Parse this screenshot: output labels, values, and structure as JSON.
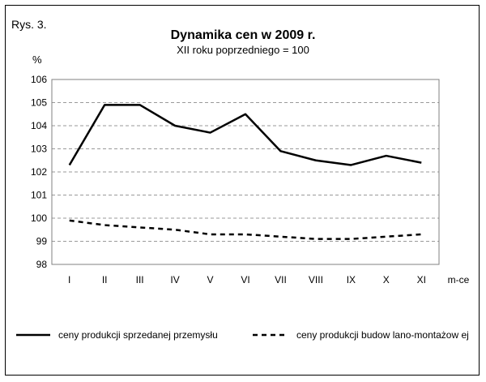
{
  "figure_label": "Rys. 3.",
  "chart_data": {
    "type": "line",
    "title": "Dynamika cen w 2009 r.",
    "subtitle": "XII roku poprzedniego = 100",
    "ylabel": "%",
    "xlabel": "m-ce",
    "ylim": [
      98,
      106
    ],
    "yticks": [
      "98",
      "99",
      "100",
      "101",
      "102",
      "103",
      "104",
      "105",
      "106"
    ],
    "categories": [
      "I",
      "II",
      "III",
      "IV",
      "V",
      "VI",
      "VII",
      "VIII",
      "IX",
      "X",
      "XI"
    ],
    "grid": true,
    "legend_position": "bottom",
    "series": [
      {
        "name": "ceny produkcji sprzedanej przemysłu",
        "style": "solid",
        "color": "#000000",
        "values": [
          102.3,
          104.9,
          104.9,
          104.0,
          103.7,
          104.5,
          102.9,
          102.5,
          102.3,
          102.7,
          102.4
        ]
      },
      {
        "name": "ceny produkcji budow lano-montażow ej",
        "style": "dashed",
        "color": "#000000",
        "values": [
          99.9,
          99.7,
          99.6,
          99.5,
          99.3,
          99.3,
          99.2,
          99.1,
          99.1,
          99.2,
          99.3
        ]
      }
    ]
  }
}
